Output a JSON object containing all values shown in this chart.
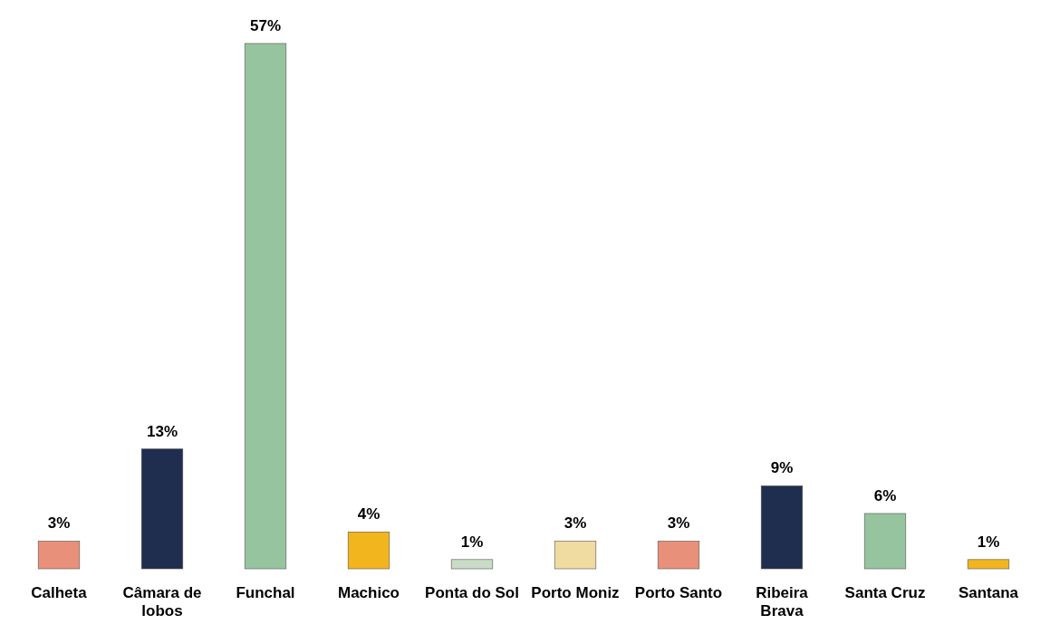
{
  "chart_data": {
    "type": "bar",
    "relative": false,
    "categories": [
      "Calheta",
      "Câmara de lobos",
      "Funchal",
      "Machico",
      "Ponta do Sol",
      "Porto Moniz",
      "Porto Santo",
      "Ribeira Brava",
      "Santa Cruz",
      "Santana"
    ],
    "values": [
      3,
      13,
      57,
      4,
      1,
      3,
      3,
      9,
      6,
      1
    ],
    "value_labels": [
      "3%",
      "13%",
      "57%",
      "4%",
      "1%",
      "3%",
      "3%",
      "9%",
      "6%",
      "1%"
    ],
    "colors": [
      "#e8907a",
      "#1f2d4e",
      "#96c49e",
      "#f2b51d",
      "#c8dcc8",
      "#f0dca0",
      "#e8907a",
      "#1f2d4e",
      "#96c49e",
      "#f2b51d"
    ]
  }
}
